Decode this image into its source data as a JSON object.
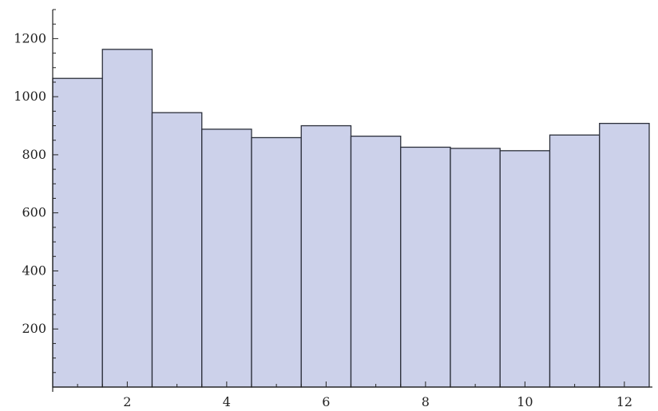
{
  "colors": {
    "bar_fill": "#ccd1ea",
    "bar_stroke": "#2b2f3a",
    "axis": "#222222"
  },
  "chart_data": {
    "type": "bar",
    "title": "",
    "xlabel": "",
    "ylabel": "",
    "bins": [
      {
        "start": 0.5,
        "end": 1.5,
        "value": 1063
      },
      {
        "start": 1.5,
        "end": 2.5,
        "value": 1163
      },
      {
        "start": 2.5,
        "end": 3.5,
        "value": 945
      },
      {
        "start": 3.5,
        "end": 4.5,
        "value": 888
      },
      {
        "start": 4.5,
        "end": 5.5,
        "value": 859
      },
      {
        "start": 5.5,
        "end": 6.5,
        "value": 900
      },
      {
        "start": 6.5,
        "end": 7.5,
        "value": 864
      },
      {
        "start": 7.5,
        "end": 8.5,
        "value": 826
      },
      {
        "start": 8.5,
        "end": 9.5,
        "value": 822
      },
      {
        "start": 9.5,
        "end": 10.5,
        "value": 814
      },
      {
        "start": 10.5,
        "end": 11.5,
        "value": 868
      },
      {
        "start": 11.5,
        "end": 12.5,
        "value": 908
      }
    ],
    "xlim": [
      0.5,
      12.5
    ],
    "ylim": [
      0,
      1300
    ],
    "x_ticks": [
      {
        "value": 2,
        "label": "2"
      },
      {
        "value": 4,
        "label": "4"
      },
      {
        "value": 6,
        "label": "6"
      },
      {
        "value": 8,
        "label": "8"
      },
      {
        "value": 10,
        "label": "10"
      },
      {
        "value": 12,
        "label": "12"
      }
    ],
    "y_ticks": [
      {
        "value": 200,
        "label": "200"
      },
      {
        "value": 400,
        "label": "400"
      },
      {
        "value": 600,
        "label": "600"
      },
      {
        "value": 800,
        "label": "800"
      },
      {
        "value": 1000,
        "label": "1000"
      },
      {
        "value": 1200,
        "label": "1200"
      }
    ],
    "grid": false,
    "legend": "none"
  }
}
